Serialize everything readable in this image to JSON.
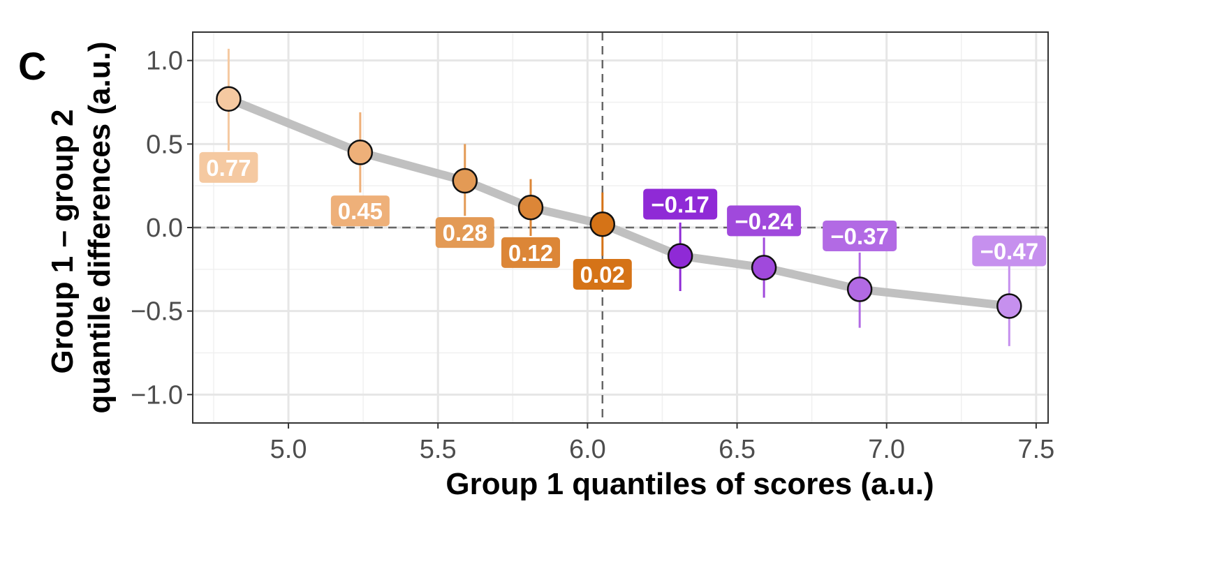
{
  "chart_data": {
    "type": "line",
    "panel_label": "C",
    "xlabel": "Group 1 quantiles of scores (a.u.)",
    "ylabel_line1": "Group 1 – group 2",
    "ylabel_line2": "quantile differences (a.u.)",
    "xlim": [
      4.68,
      7.54
    ],
    "ylim": [
      -1.17,
      1.17
    ],
    "x_ticks": [
      5.0,
      5.5,
      6.0,
      6.5,
      7.0,
      7.5
    ],
    "x_tick_labels": [
      "5.0",
      "5.5",
      "6.0",
      "6.5",
      "7.0",
      "7.5"
    ],
    "y_ticks": [
      -1.0,
      -0.5,
      0.0,
      0.5,
      1.0
    ],
    "y_tick_labels": [
      "−1.0",
      "−0.5",
      "0.0",
      "0.5",
      "1.0"
    ],
    "grid": true,
    "reference_lines": {
      "h": 0.0,
      "v": 6.05
    },
    "line_color": "#c0c0c0",
    "points": [
      {
        "x": 4.8,
        "y": 0.77,
        "lo": 0.46,
        "hi": 1.07,
        "label": "0.77",
        "color": "#f5c9a1",
        "label_pos": "below",
        "label_y": 0.36
      },
      {
        "x": 5.24,
        "y": 0.45,
        "lo": 0.21,
        "hi": 0.69,
        "label": "0.45",
        "color": "#eeb079",
        "label_pos": "below",
        "label_y": 0.1
      },
      {
        "x": 5.59,
        "y": 0.28,
        "lo": 0.07,
        "hi": 0.5,
        "label": "0.28",
        "color": "#e39a55",
        "label_pos": "below",
        "label_y": -0.03
      },
      {
        "x": 5.81,
        "y": 0.12,
        "lo": -0.05,
        "hi": 0.29,
        "label": "0.12",
        "color": "#dc8637",
        "label_pos": "below",
        "label_y": -0.15
      },
      {
        "x": 6.05,
        "y": 0.02,
        "lo": -0.17,
        "hi": 0.21,
        "label": "0.02",
        "color": "#d57317",
        "label_pos": "below",
        "label_y": -0.28
      },
      {
        "x": 6.31,
        "y": -0.17,
        "lo": -0.38,
        "hi": 0.03,
        "label": "−0.17",
        "color": "#8f2ad6",
        "label_pos": "above",
        "label_y": 0.14
      },
      {
        "x": 6.59,
        "y": -0.24,
        "lo": -0.42,
        "hi": -0.06,
        "label": "−0.24",
        "color": "#a049dc",
        "label_pos": "above",
        "label_y": 0.04
      },
      {
        "x": 6.91,
        "y": -0.37,
        "lo": -0.6,
        "hi": -0.15,
        "label": "−0.37",
        "color": "#b26ae4",
        "label_pos": "above",
        "label_y": -0.05
      },
      {
        "x": 7.41,
        "y": -0.47,
        "lo": -0.71,
        "hi": -0.23,
        "label": "−0.47",
        "color": "#c690ee",
        "label_pos": "above",
        "label_y": -0.14
      }
    ]
  }
}
